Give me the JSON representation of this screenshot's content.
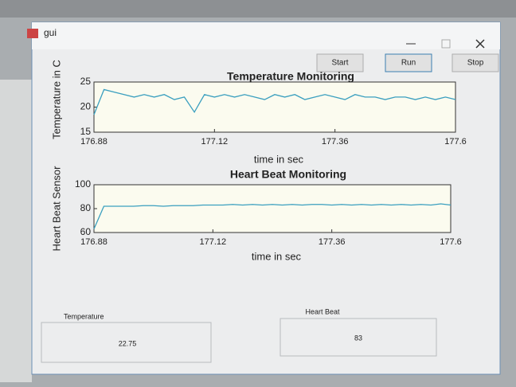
{
  "window": {
    "title": "gui"
  },
  "buttons": [
    "Start",
    "Run",
    "Stop"
  ],
  "chart_data": [
    {
      "type": "line",
      "title": "Temperature Monitoring",
      "x_label": "time in sec",
      "y_label": "Temperature in C",
      "xlim": [
        176.88,
        177.6
      ],
      "xticks": [
        176.88,
        177.12,
        177.36,
        177.6
      ],
      "ylim": [
        15,
        25
      ],
      "yticks": [
        15,
        20,
        25
      ],
      "x": [
        176.88,
        176.9,
        176.92,
        176.94,
        176.96,
        176.98,
        177.0,
        177.02,
        177.04,
        177.06,
        177.08,
        177.1,
        177.12,
        177.14,
        177.16,
        177.18,
        177.2,
        177.22,
        177.24,
        177.26,
        177.28,
        177.3,
        177.32,
        177.34,
        177.36,
        177.38,
        177.4,
        177.42,
        177.44,
        177.46,
        177.48,
        177.5,
        177.52,
        177.54,
        177.56,
        177.58,
        177.6
      ],
      "color": "#3a9fbf",
      "values": [
        18.5,
        23.5,
        23,
        22.5,
        22,
        22.5,
        22,
        22.5,
        21.5,
        22,
        19,
        22.5,
        22,
        22.5,
        22,
        22.5,
        22,
        21.5,
        22.5,
        22,
        22.5,
        21.5,
        22,
        22.5,
        22,
        21.5,
        22.5,
        22,
        22,
        21.5,
        22,
        22,
        21.5,
        22,
        21.5,
        22,
        21.5
      ]
    },
    {
      "type": "line",
      "title": "Heart Beat Monitoring",
      "x_label": "time in sec",
      "y_label": "Heart Beat Sensor",
      "xlim": [
        176.88,
        177.6
      ],
      "xticks": [
        176.88,
        177.12,
        177.36,
        177.6
      ],
      "ylim": [
        60,
        100
      ],
      "yticks": [
        60,
        80,
        100
      ],
      "x": [
        176.88,
        176.9,
        176.92,
        176.94,
        176.96,
        176.98,
        177.0,
        177.02,
        177.04,
        177.06,
        177.08,
        177.1,
        177.12,
        177.14,
        177.16,
        177.18,
        177.2,
        177.22,
        177.24,
        177.26,
        177.28,
        177.3,
        177.32,
        177.34,
        177.36,
        177.38,
        177.4,
        177.42,
        177.44,
        177.46,
        177.48,
        177.5,
        177.52,
        177.54,
        177.56,
        177.58,
        177.6
      ],
      "color": "#3a9fbf",
      "values": [
        63,
        82,
        82,
        82,
        82,
        82.5,
        82.5,
        82,
        82.5,
        82.5,
        82.5,
        83,
        83,
        83,
        83.5,
        83,
        83.5,
        83,
        83.5,
        83,
        83.5,
        83,
        83.5,
        83.5,
        83,
        83.5,
        83,
        83.5,
        83,
        83.5,
        83,
        83.5,
        83,
        83.5,
        83,
        84,
        83
      ]
    }
  ],
  "displays": [
    {
      "label": "Temperature",
      "value": 22.75
    },
    {
      "label": "Heart Beat",
      "value": 83
    }
  ]
}
